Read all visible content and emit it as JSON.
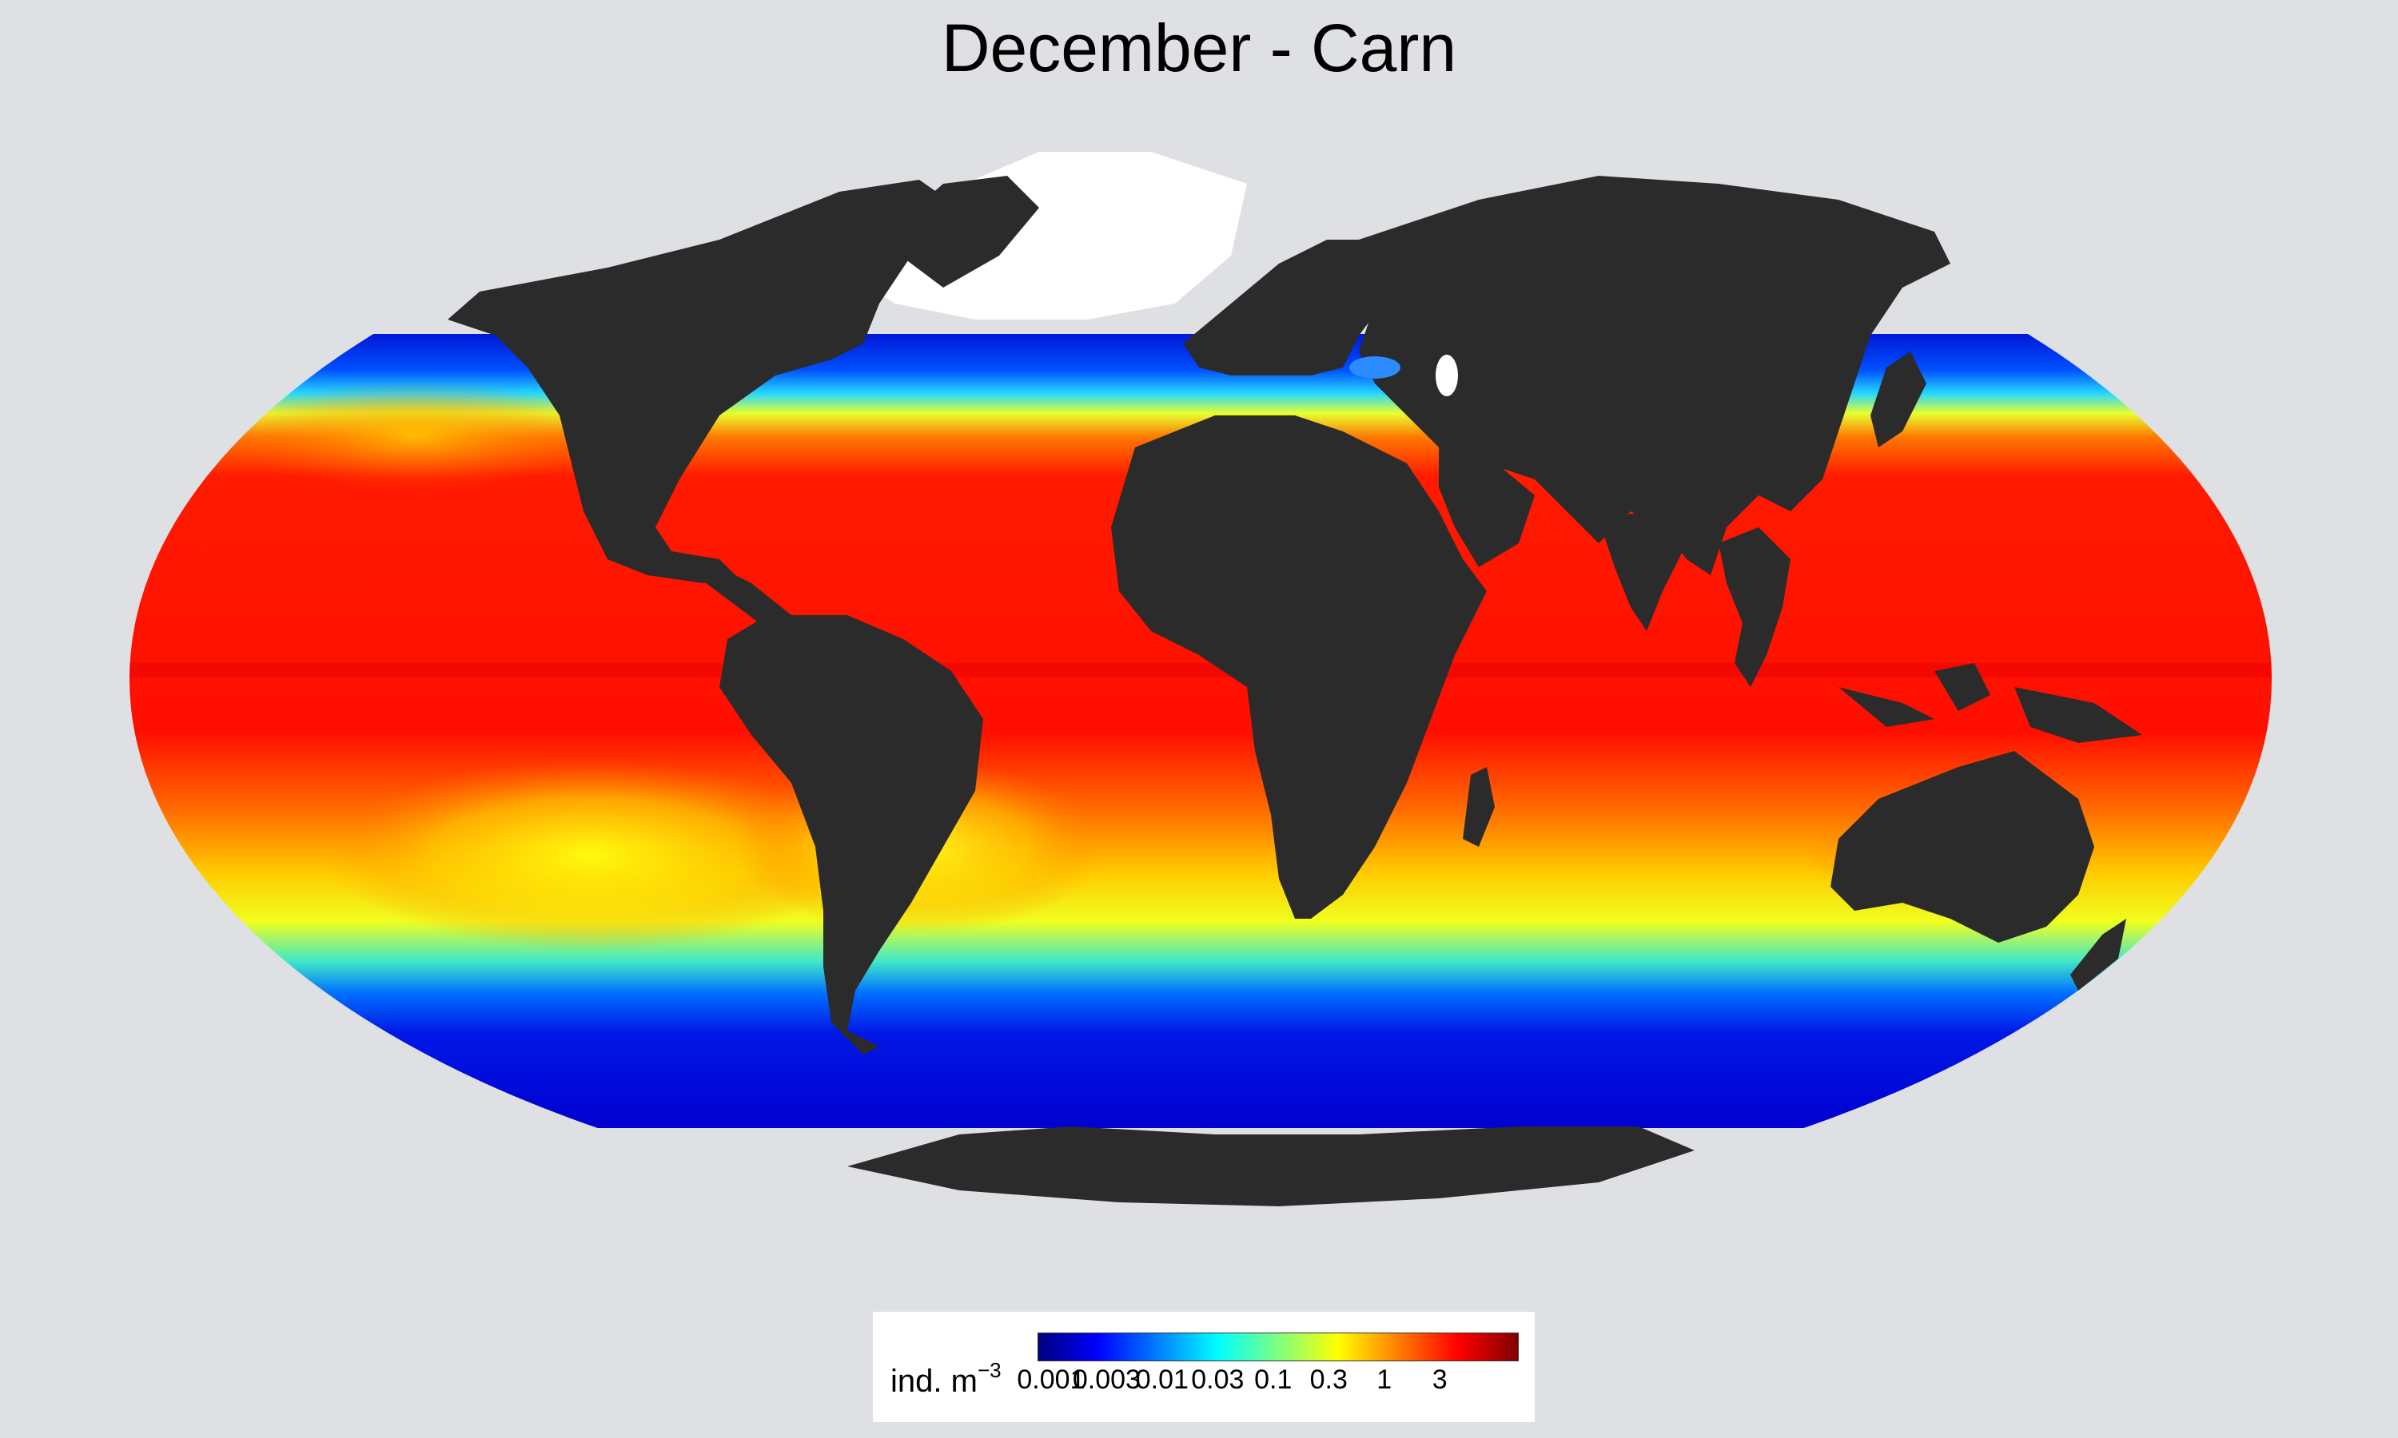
{
  "title": "December - Carn",
  "legend": {
    "title_text": "ind. m",
    "title_superscript": "−3",
    "ticks": [
      "0.001",
      "0.003",
      "0.01",
      "0.03",
      "0.1",
      "0.3",
      "1",
      "3"
    ],
    "colors": [
      "#00007f",
      "#0000ff",
      "#007fff",
      "#00ffff",
      "#7fff7f",
      "#ffff00",
      "#ff7f00",
      "#ff0000",
      "#7f0000"
    ]
  },
  "colors": {
    "background": "#dfe0e4",
    "land": "#2b2b2b",
    "ice": "#ffffff",
    "ocean_low": "#0015e6",
    "ocean_mid": "#ffff00",
    "ocean_high": "#ff1200"
  }
}
